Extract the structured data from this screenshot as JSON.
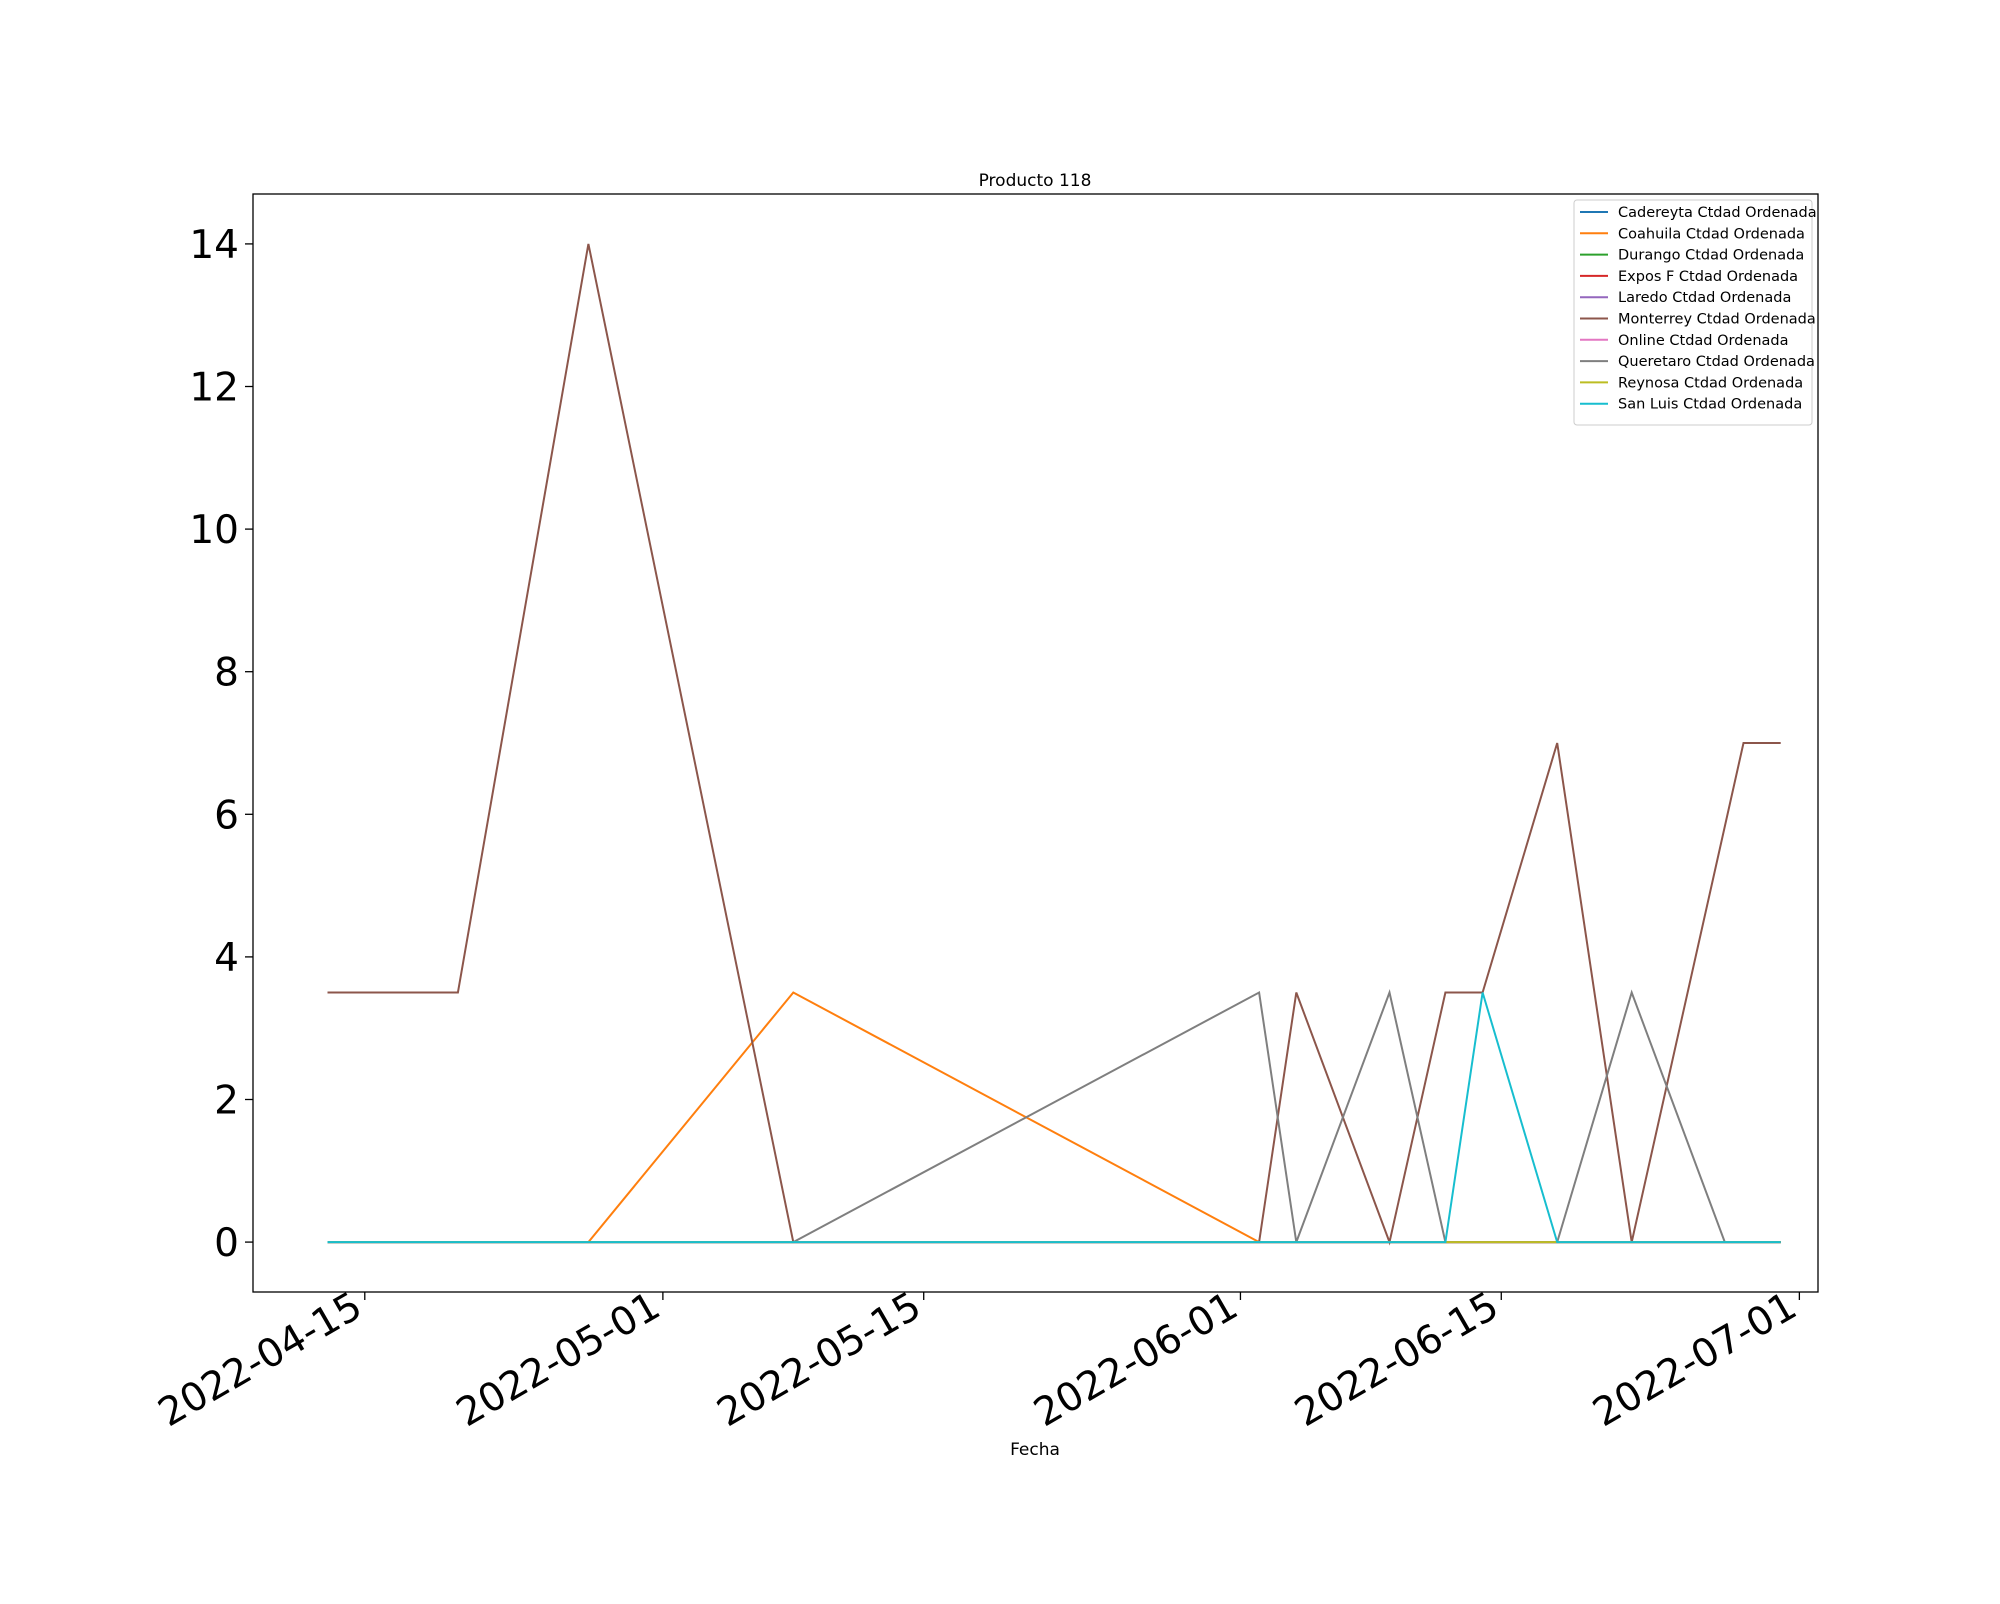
{
  "chart_data": {
    "type": "line",
    "title": "Producto 118",
    "xlabel": "Fecha",
    "ylabel": "",
    "x_type": "date",
    "xlim": [
      "2022-04-09",
      "2022-07-02"
    ],
    "ylim": [
      -0.7,
      14.7
    ],
    "x_ticks": [
      "2022-04-15",
      "2022-05-01",
      "2022-05-15",
      "2022-06-01",
      "2022-06-15",
      "2022-07-01"
    ],
    "y_ticks": [
      0,
      2,
      4,
      6,
      8,
      10,
      12,
      14
    ],
    "grid": false,
    "legend_position": "top-right",
    "series": [
      {
        "name": "Cadereyta Ctdad Ordenada",
        "color": "#1f77b4",
        "x": [
          "2022-04-13",
          "2022-06-30"
        ],
        "y": [
          0,
          0
        ]
      },
      {
        "name": "Coahuila Ctdad Ordenada",
        "color": "#ff7f0e",
        "x": [
          "2022-04-13",
          "2022-04-27",
          "2022-05-08",
          "2022-06-02",
          "2022-06-30"
        ],
        "y": [
          0,
          0,
          3.5,
          0,
          0
        ]
      },
      {
        "name": "Durango Ctdad Ordenada",
        "color": "#2ca02c",
        "x": [
          "2022-04-13",
          "2022-06-30"
        ],
        "y": [
          0,
          0
        ]
      },
      {
        "name": "Expos F Ctdad Ordenada",
        "color": "#d62728",
        "x": [
          "2022-04-13",
          "2022-06-30"
        ],
        "y": [
          0,
          0
        ]
      },
      {
        "name": "Laredo Ctdad Ordenada",
        "color": "#9467bd",
        "x": [
          "2022-04-13",
          "2022-06-30"
        ],
        "y": [
          0,
          0
        ]
      },
      {
        "name": "Monterrey Ctdad Ordenada",
        "color": "#8c564b",
        "x": [
          "2022-04-13",
          "2022-04-20",
          "2022-04-27",
          "2022-05-08",
          "2022-06-02",
          "2022-06-04",
          "2022-06-09",
          "2022-06-12",
          "2022-06-14",
          "2022-06-18",
          "2022-06-22",
          "2022-06-28",
          "2022-06-30"
        ],
        "y": [
          3.5,
          3.5,
          14,
          0,
          0,
          3.5,
          0,
          3.5,
          3.5,
          7,
          0,
          7,
          7
        ]
      },
      {
        "name": "Online Ctdad Ordenada",
        "color": "#e377c2",
        "x": [
          "2022-04-13",
          "2022-06-30"
        ],
        "y": [
          0,
          0
        ]
      },
      {
        "name": "Queretaro Ctdad Ordenada",
        "color": "#7f7f7f",
        "x": [
          "2022-04-13",
          "2022-05-08",
          "2022-06-02",
          "2022-06-04",
          "2022-06-09",
          "2022-06-12",
          "2022-06-18",
          "2022-06-22",
          "2022-06-27",
          "2022-06-30"
        ],
        "y": [
          0,
          0,
          3.5,
          0,
          3.5,
          0,
          0,
          3.5,
          0,
          0
        ]
      },
      {
        "name": "Reynosa Ctdad Ordenada",
        "color": "#bcbd22",
        "x": [
          "2022-04-13",
          "2022-06-30"
        ],
        "y": [
          0,
          0
        ]
      },
      {
        "name": "San Luis Ctdad Ordenada",
        "color": "#17becf",
        "x": [
          "2022-04-13",
          "2022-06-12",
          "2022-06-14",
          "2022-06-18",
          "2022-06-30"
        ],
        "y": [
          0,
          0,
          3.5,
          0,
          0
        ]
      }
    ]
  }
}
